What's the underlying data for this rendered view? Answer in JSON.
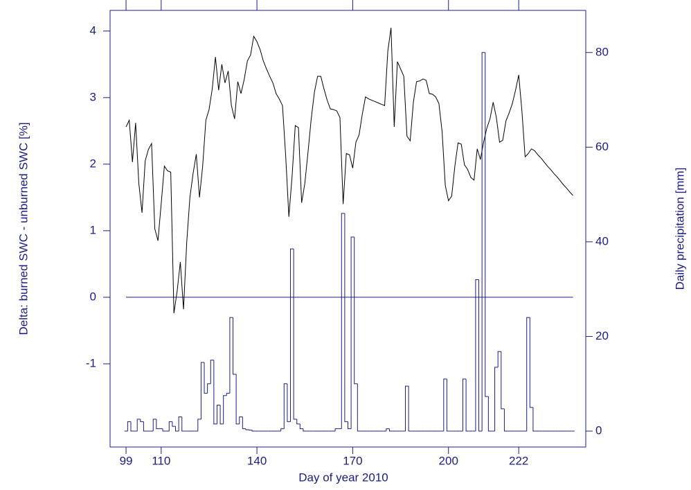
{
  "chart_data": {
    "type": "line",
    "xlabel": "Day of year 2010",
    "ylabel": "Delta: burned SWC - unburned SWC [%]",
    "y2label": "Daily precipitation [mm]",
    "xlim": [
      94,
      243
    ],
    "xticks": [
      99,
      110,
      140,
      170,
      200,
      222
    ],
    "ylim": [
      -2.25,
      4.31
    ],
    "yticks": [
      -1,
      0,
      1,
      2,
      3,
      4
    ],
    "y2lim": [
      -3.37,
      88.9
    ],
    "y2ticks": [
      0,
      20,
      40,
      60,
      80
    ],
    "reference_line": 0,
    "x": [
      99,
      100,
      101,
      102,
      103,
      104,
      105,
      106,
      107,
      108,
      109,
      110,
      111,
      112,
      113,
      114,
      115,
      116,
      117,
      118,
      119,
      120,
      121,
      122,
      123,
      124,
      125,
      126,
      127,
      128,
      129,
      130,
      131,
      132,
      133,
      134,
      135,
      136,
      137,
      138,
      139,
      140,
      141,
      142,
      143,
      144,
      145,
      146,
      147,
      148,
      149,
      150,
      151,
      152,
      153,
      154,
      155,
      156,
      157,
      158,
      159,
      160,
      161,
      162,
      163,
      164,
      165,
      166,
      167,
      168,
      169,
      170,
      171,
      172,
      173,
      174,
      175,
      176,
      177,
      178,
      179,
      180,
      181,
      182,
      183,
      184,
      185,
      186,
      187,
      188,
      189,
      190,
      191,
      192,
      193,
      194,
      195,
      196,
      197,
      198,
      199,
      200,
      201,
      202,
      203,
      204,
      205,
      206,
      207,
      208,
      209,
      210,
      211,
      212,
      213,
      214,
      215,
      216,
      217,
      218,
      219,
      220,
      221,
      222,
      223,
      224,
      225,
      226,
      227,
      228,
      229,
      230,
      231,
      232,
      233,
      234,
      235,
      236,
      237,
      238,
      239
    ],
    "series": [
      {
        "type": "line",
        "color": "#000000",
        "values": [
          2.56,
          2.66,
          2.03,
          2.62,
          1.71,
          1.27,
          2.05,
          2.22,
          2.31,
          1.03,
          0.85,
          1.4,
          1.97,
          1.9,
          1.88,
          -0.24,
          0.09,
          0.53,
          -0.18,
          0.82,
          1.5,
          1.86,
          2.15,
          1.5,
          1.97,
          2.66,
          2.82,
          3.13,
          3.61,
          3.11,
          3.5,
          3.22,
          3.4,
          2.88,
          2.68,
          3.24,
          3.06,
          3.27,
          3.55,
          3.64,
          3.92,
          3.84,
          3.72,
          3.55,
          3.43,
          3.32,
          3.22,
          3.06,
          2.98,
          2.88,
          2.13,
          1.21,
          1.81,
          2.58,
          2.55,
          1.42,
          1.71,
          2.18,
          2.68,
          3.08,
          3.32,
          3.32,
          3.13,
          2.96,
          2.83,
          2.82,
          2.8,
          2.7,
          1.4,
          2.16,
          2.14,
          1.94,
          2.33,
          2.44,
          2.75,
          3.01,
          2.98,
          2.96,
          2.94,
          2.92,
          2.9,
          2.88,
          3.7,
          4.05,
          2.56,
          3.54,
          3.43,
          3.32,
          2.42,
          2.35,
          2.93,
          3.24,
          3.25,
          3.28,
          3.26,
          3.06,
          3.05,
          3.01,
          2.91,
          2.49,
          1.68,
          1.45,
          1.52,
          1.97,
          2.32,
          2.3,
          1.99,
          1.92,
          1.8,
          1.76,
          2.23,
          2.07,
          2.33,
          2.54,
          2.68,
          2.93,
          2.7,
          2.33,
          2.36,
          2.65,
          2.77,
          2.91,
          3.11,
          3.34,
          2.8,
          2.11,
          2.16,
          2.23,
          2.2,
          2.14,
          2.09,
          2.03,
          1.97,
          1.92,
          1.86,
          1.81,
          1.75,
          1.69,
          1.64,
          1.58,
          1.53
        ]
      },
      {
        "type": "step",
        "axis": "y2",
        "color": "#1c1c80",
        "values": [
          0,
          2,
          0,
          0,
          2.5,
          2,
          0,
          0,
          0,
          2.5,
          0.5,
          0.5,
          0,
          0,
          2,
          1,
          0,
          3,
          0,
          0,
          0,
          0,
          0,
          2.5,
          14.5,
          8,
          10,
          15,
          1.5,
          5.5,
          1.5,
          7.5,
          8,
          24,
          12,
          1.5,
          3,
          0.5,
          0.3,
          0.2,
          0,
          0,
          0,
          0,
          0,
          0,
          0,
          0,
          0,
          0.5,
          10,
          2,
          38.5,
          2.5,
          1.5,
          0.5,
          0,
          0,
          0,
          0,
          0,
          0,
          0,
          0,
          0,
          0,
          0.5,
          0.5,
          46,
          2,
          0.5,
          41,
          10,
          0,
          0,
          0,
          0,
          0,
          0,
          0,
          0,
          0,
          0.5,
          0,
          0,
          0,
          0,
          0,
          9.5,
          0,
          0,
          0,
          0,
          0,
          0,
          0,
          0,
          0,
          0,
          0,
          11,
          0,
          0,
          0,
          0,
          0,
          11,
          0,
          0,
          0,
          32,
          0,
          80,
          7.3,
          0,
          0,
          13.5,
          16.8,
          4.7,
          0,
          0,
          0,
          0,
          0,
          0,
          0,
          24,
          5,
          0,
          0,
          0,
          0,
          0,
          0,
          0,
          0,
          0,
          0,
          0,
          0,
          0
        ]
      }
    ]
  }
}
